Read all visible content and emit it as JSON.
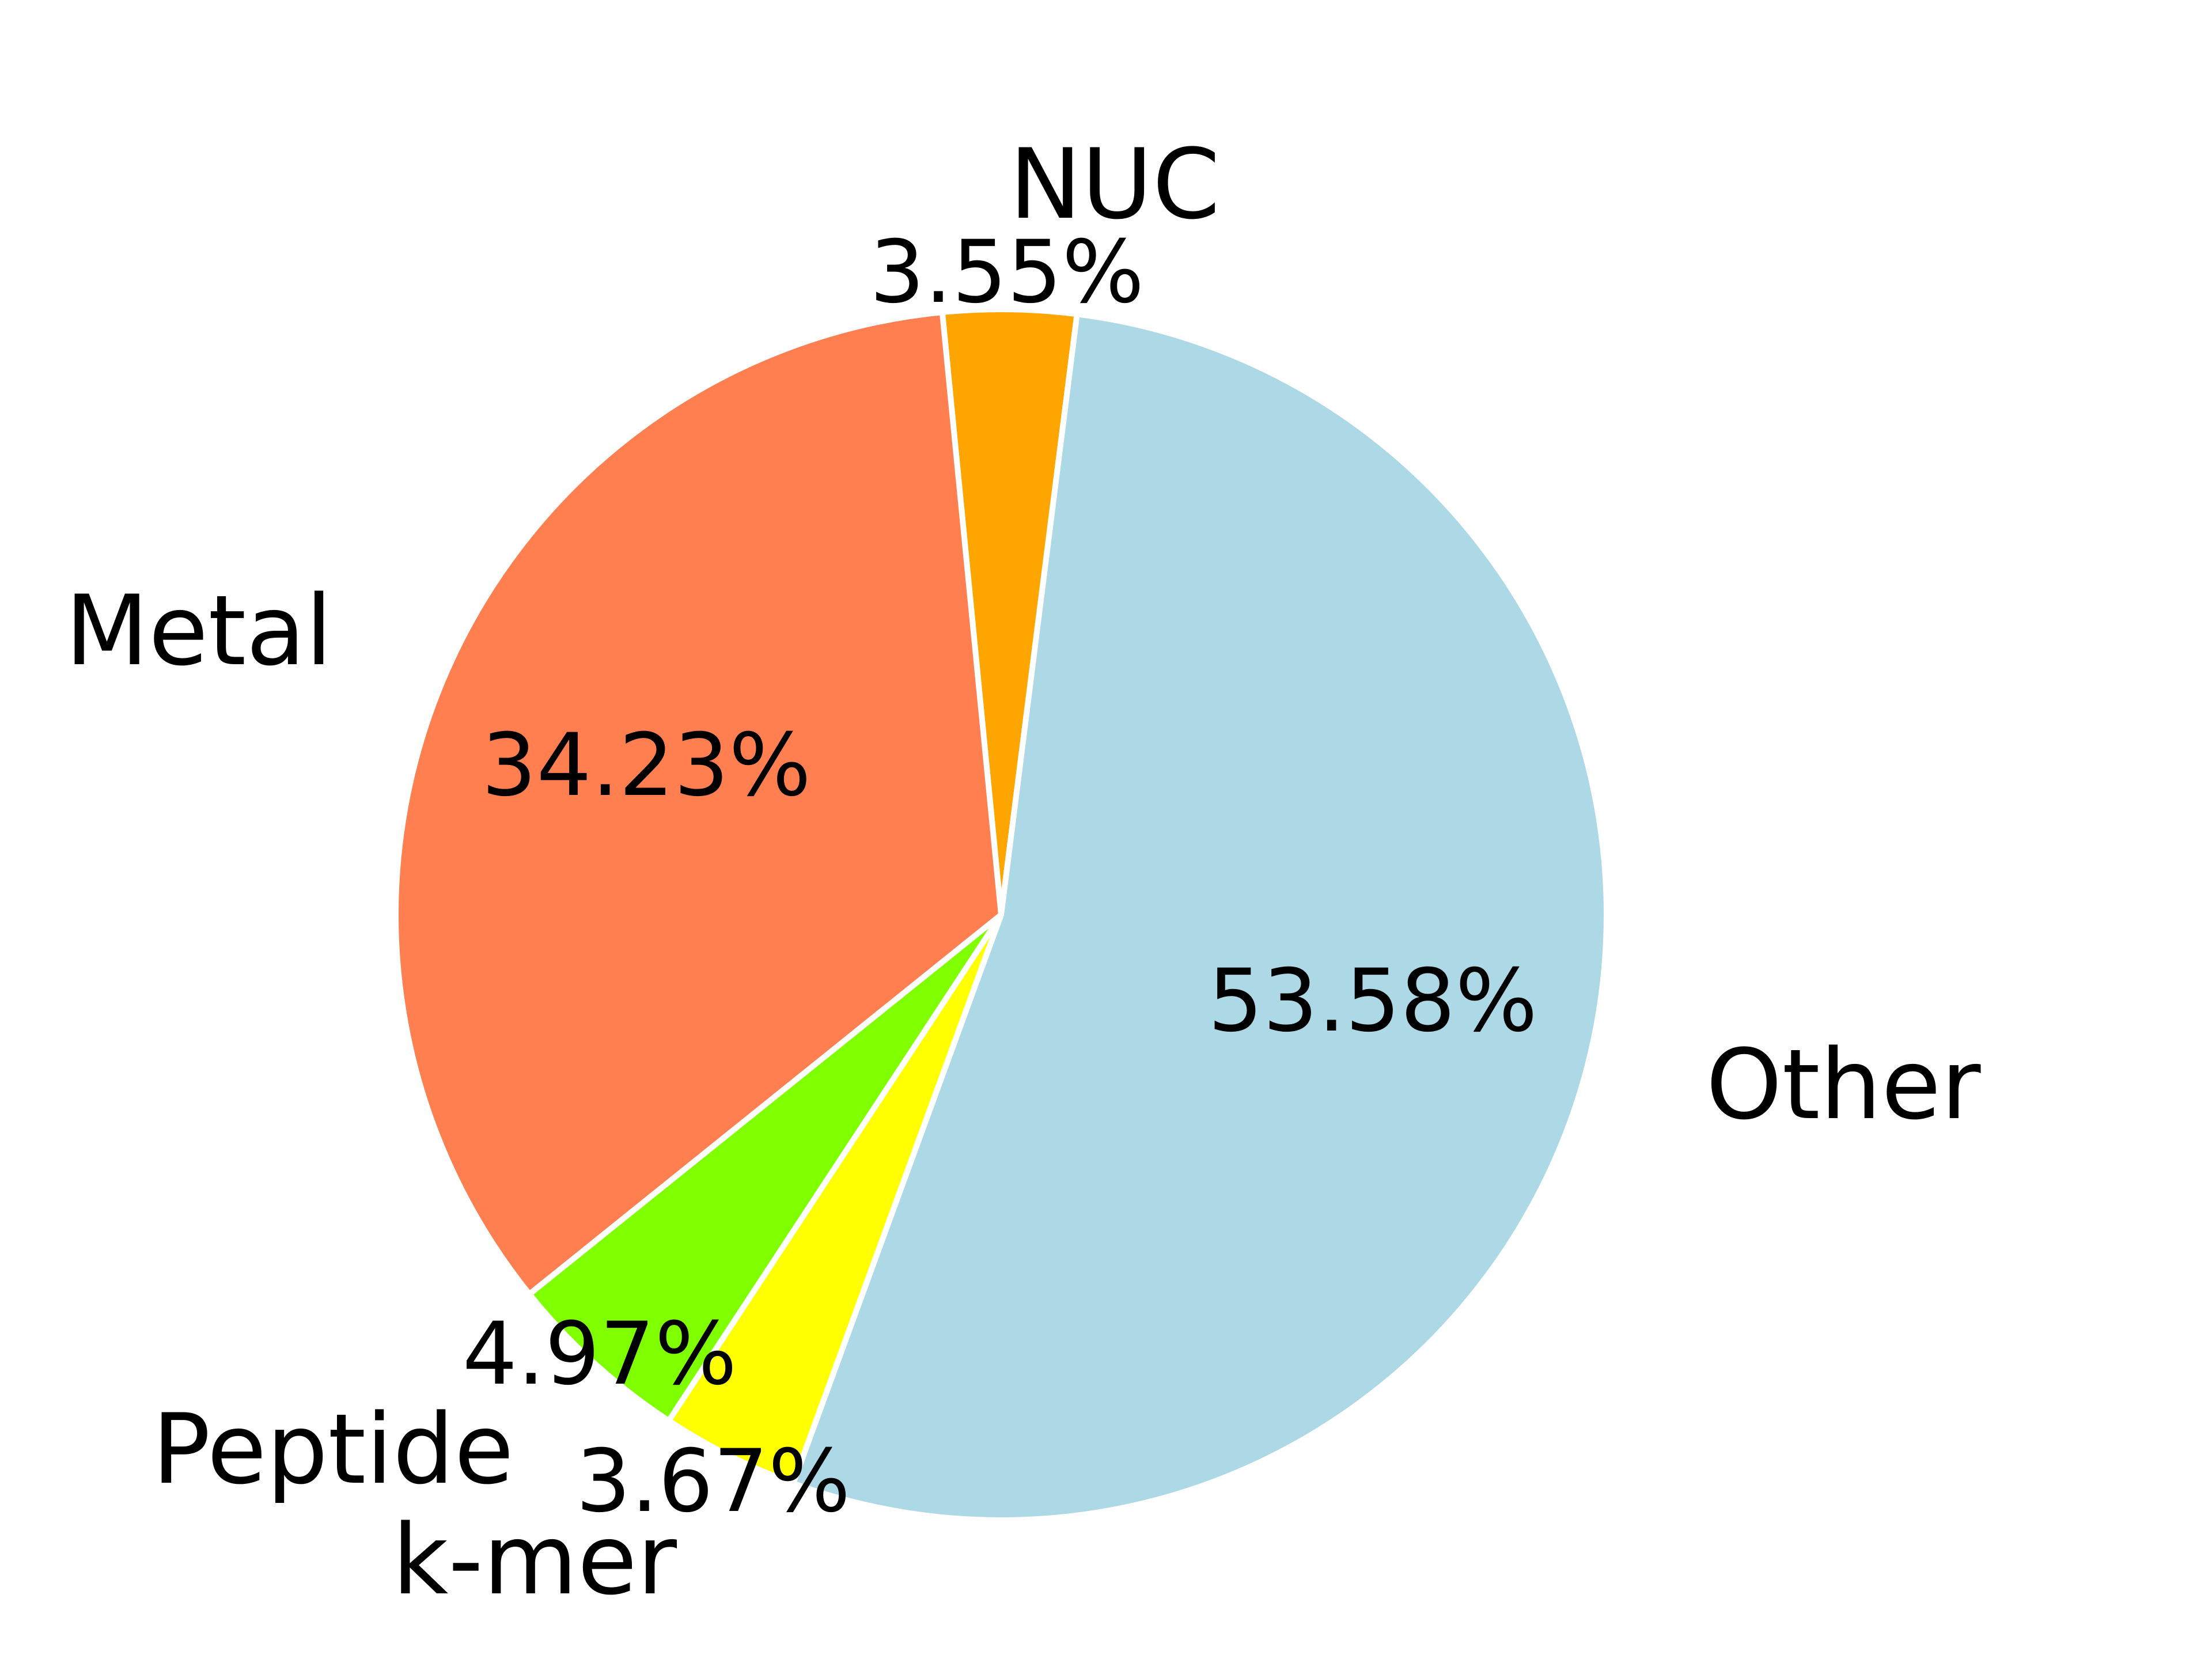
{
  "chart_data": {
    "type": "pie",
    "title": "",
    "slices": [
      {
        "label": "NUC",
        "value": 3.55,
        "pct_label": "3.55%",
        "color": "#FFA500"
      },
      {
        "label": "Metal",
        "value": 34.23,
        "pct_label": "34.23%",
        "color": "#FF7F50"
      },
      {
        "label": "Peptide",
        "value": 4.97,
        "pct_label": "4.97%",
        "color": "#7FFF00"
      },
      {
        "label": "k-mer",
        "value": 3.67,
        "pct_label": "3.67%",
        "color": "#FFFF00"
      },
      {
        "label": "Other",
        "value": 53.58,
        "pct_label": "53.58%",
        "color": "#ADD8E6"
      }
    ],
    "start_angle_deg": 82.8,
    "direction": "counterclockwise",
    "edge_color": "#FFFFFF",
    "legend": "none"
  }
}
